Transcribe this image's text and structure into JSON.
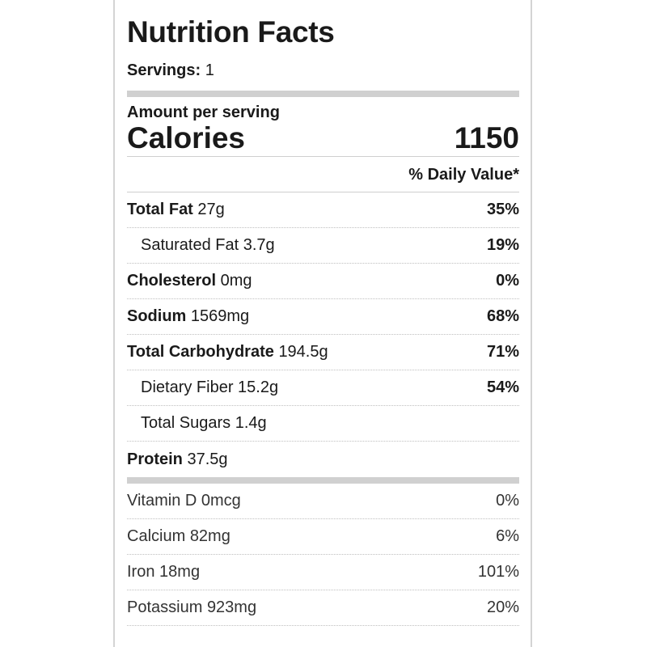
{
  "title": "Nutrition Facts",
  "servings": {
    "label": "Servings:",
    "value": "1"
  },
  "amount_per_serving": "Amount per serving",
  "calories": {
    "label": "Calories",
    "value": "1150"
  },
  "daily_value_header": "% Daily Value*",
  "nutrients": [
    {
      "name": "Total Fat",
      "amount": "27g",
      "dv": "35%"
    },
    {
      "name": "Saturated Fat",
      "amount": "3.7g",
      "dv": "19%"
    },
    {
      "name": "Cholesterol",
      "amount": "0mg",
      "dv": "0%"
    },
    {
      "name": "Sodium",
      "amount": "1569mg",
      "dv": "68%"
    },
    {
      "name": "Total Carbohydrate",
      "amount": "194.5g",
      "dv": "71%"
    },
    {
      "name": "Dietary Fiber",
      "amount": "15.2g",
      "dv": "54%"
    },
    {
      "name": "Total Sugars",
      "amount": "1.4g",
      "dv": ""
    },
    {
      "name": "Protein",
      "amount": "37.5g",
      "dv": ""
    }
  ],
  "vitamins": [
    {
      "name": "Vitamin D",
      "amount": "0mcg",
      "dv": "0%"
    },
    {
      "name": "Calcium",
      "amount": "82mg",
      "dv": "6%"
    },
    {
      "name": "Iron",
      "amount": "18mg",
      "dv": "101%"
    },
    {
      "name": "Potassium",
      "amount": "923mg",
      "dv": "20%"
    }
  ]
}
